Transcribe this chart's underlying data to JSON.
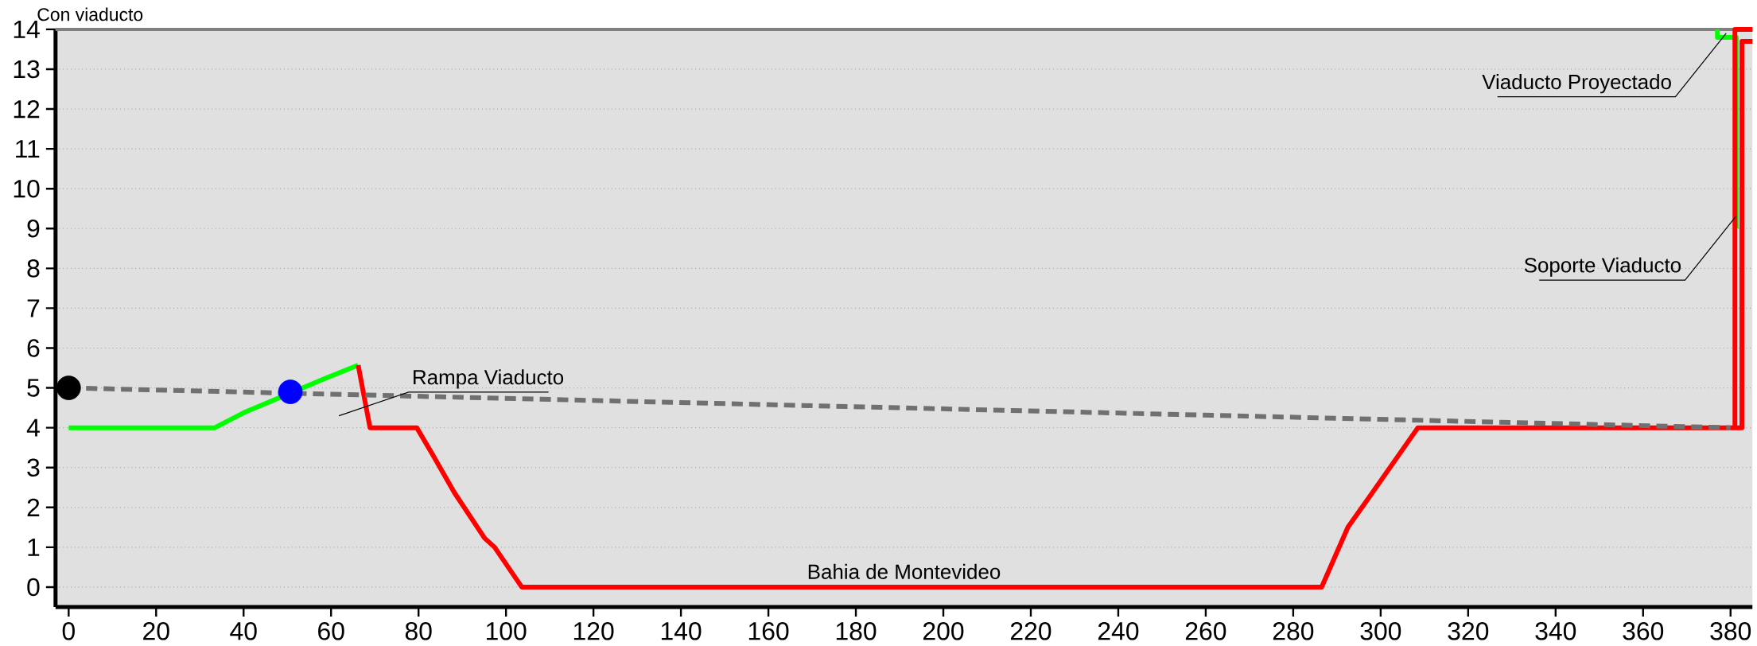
{
  "chart_data": {
    "type": "line",
    "title": "Con viaducto",
    "xlim": [
      -3,
      385
    ],
    "ylim": [
      -0.5,
      14
    ],
    "xticks": [
      0,
      20,
      40,
      60,
      80,
      100,
      120,
      140,
      160,
      180,
      200,
      220,
      240,
      260,
      280,
      300,
      320,
      340,
      360,
      380
    ],
    "yticks": [
      0,
      1,
      2,
      3,
      4,
      5,
      6,
      7,
      8,
      9,
      10,
      11,
      12,
      13,
      14
    ],
    "grid": "y",
    "marker": "none",
    "series": [
      {
        "color": "#00ff00",
        "x": [
          0,
          33.4,
          40.1,
          58.5,
          66.2,
          70,
          377,
          377,
          381.3,
          381.3
        ],
        "values": [
          4,
          4,
          4.38,
          5.23,
          5.57,
          null,
          14,
          13.8,
          13.8,
          9
        ]
      },
      {
        "color": "#ff0000",
        "x": [
          66.2,
          68.9,
          79.6,
          83.1,
          88.2,
          95.1,
          97.4,
          103.6,
          286.5,
          292.5,
          297.4,
          308.5,
          382.6,
          382.6,
          385,
          384,
          381,
          381,
          385
        ],
        "values": [
          5.57,
          4,
          4,
          3.35,
          2.37,
          1.23,
          1,
          0,
          0,
          1.5,
          2.26,
          4,
          4,
          13.7,
          13.7,
          null,
          4,
          14,
          14
        ]
      },
      {
        "color": "#707070",
        "line_style": "dashed",
        "x": [
          0,
          380
        ],
        "values": [
          5,
          4
        ]
      },
      {
        "type": "scatter",
        "color": "#000000",
        "marker": "circle",
        "x": [
          0
        ],
        "values": [
          5
        ]
      },
      {
        "type": "scatter",
        "color": "#0000ff",
        "marker": "circle",
        "x": [
          50.7
        ],
        "values": [
          4.9
        ]
      }
    ],
    "annotations": [
      "Rampa Viaducto",
      "Bahia de Montevideo",
      {
        "text": "Viaducto Proyectado",
        "x": 379,
        "y": 13.9
      },
      {
        "text": "Soporte Viaducto",
        "x": 381.2,
        "y": 9.3
      }
    ]
  }
}
